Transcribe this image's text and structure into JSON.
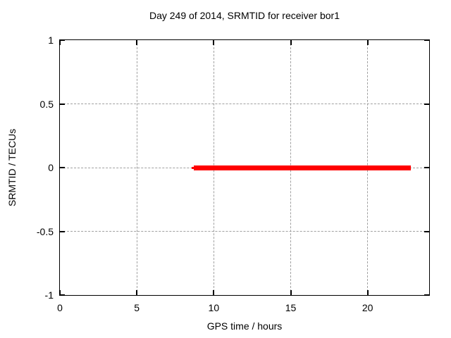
{
  "chart_data": {
    "type": "line",
    "title": "Day 249 of 2014, SRMTID for receiver bor1",
    "xlabel": "GPS time / hours",
    "ylabel": "SRMTID / TECUs",
    "xlim": [
      0,
      24
    ],
    "ylim": [
      -1,
      1
    ],
    "x_ticks": [
      0,
      5,
      10,
      15,
      20
    ],
    "y_ticks": [
      -1,
      -0.5,
      0,
      0.5,
      1
    ],
    "grid": true,
    "legend_position": "none",
    "colors": {
      "axis": "#000000",
      "grid": "#a0a0a0",
      "background": "#ffffff",
      "text": "#000000"
    },
    "series": [
      {
        "name": "SRMTID",
        "color": "#ff0000",
        "points": [
          [
            8.6,
            0
          ],
          [
            22.8,
            0
          ]
        ],
        "segments": [
          {
            "x1": 8.55,
            "x2": 8.7,
            "y": 0,
            "thickness_px": 3
          },
          {
            "x1": 8.7,
            "x2": 22.8,
            "y": 0,
            "thickness_px": 7
          }
        ]
      }
    ]
  }
}
